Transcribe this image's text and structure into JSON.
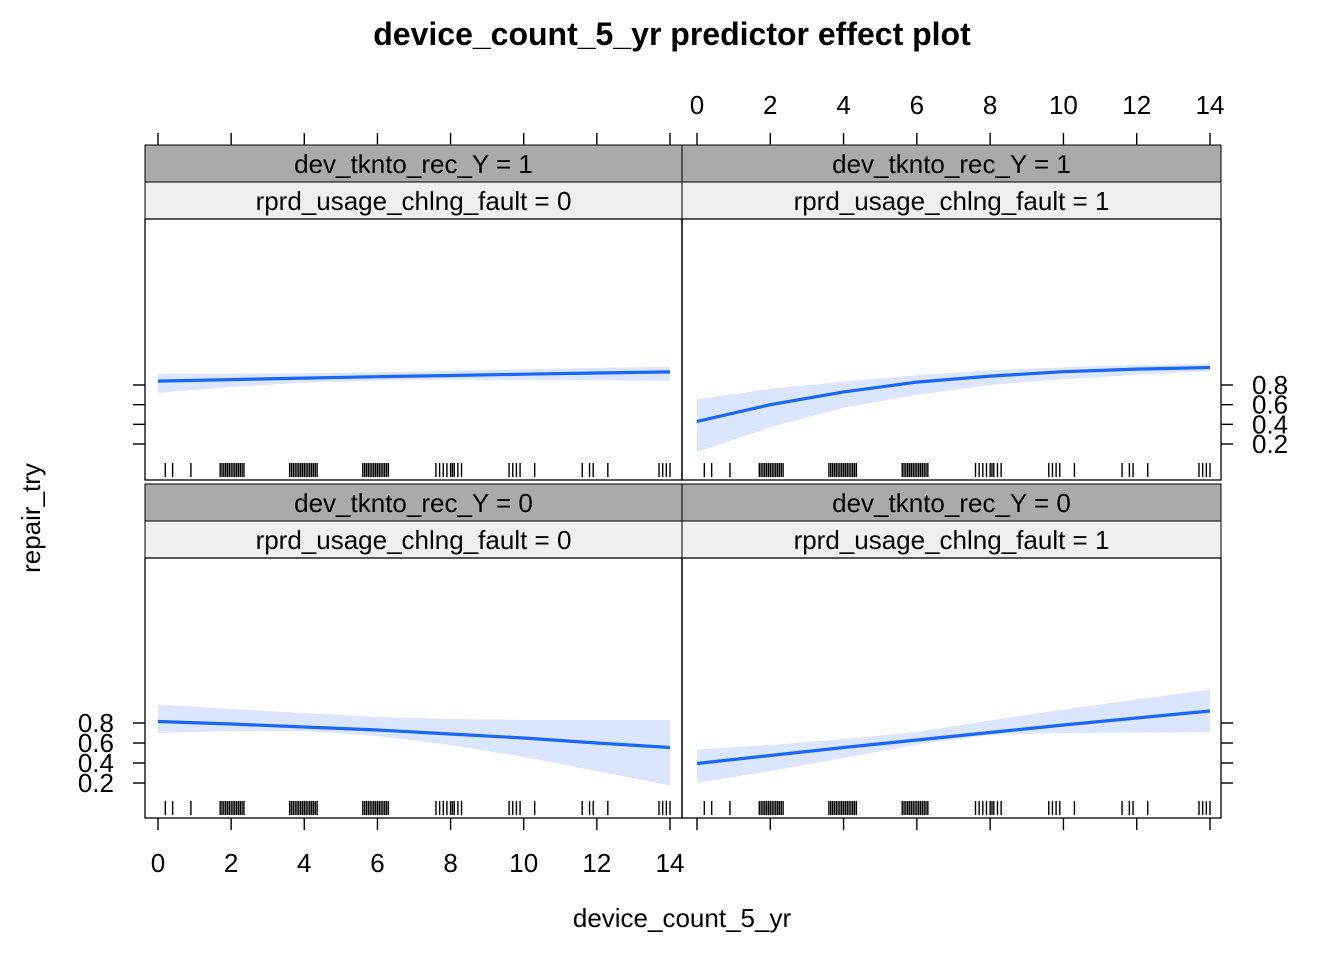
{
  "chart_data": {
    "type": "line",
    "title": "device_count_5_yr predictor effect plot",
    "xlabel": "device_count_5_yr",
    "ylabel": "repair_try",
    "xlim": [
      0,
      14
    ],
    "x_ticks": [
      0,
      2,
      4,
      6,
      8,
      10,
      12,
      14
    ],
    "y_ticks": [
      0.2,
      0.4,
      0.6,
      0.8
    ],
    "grid": false,
    "colors": {
      "line": "#1a66f5",
      "band": "#dbe6fc",
      "strip_dark": "#aaaaaa",
      "strip_light": "#efefef",
      "rug": "#000000"
    },
    "rug_x": [
      0.2,
      0.4,
      0.9,
      1.7,
      1.75,
      1.8,
      1.85,
      1.9,
      1.95,
      2.0,
      2.05,
      2.1,
      2.15,
      2.2,
      2.25,
      2.3,
      2.35,
      3.6,
      3.65,
      3.7,
      3.75,
      3.8,
      3.85,
      3.9,
      3.95,
      4.0,
      4.05,
      4.1,
      4.15,
      4.2,
      4.25,
      4.3,
      4.35,
      5.6,
      5.65,
      5.7,
      5.75,
      5.8,
      5.85,
      5.9,
      5.95,
      6.0,
      6.05,
      6.1,
      6.15,
      6.2,
      6.25,
      6.3,
      7.6,
      7.7,
      7.8,
      7.9,
      8.0,
      8.05,
      8.1,
      8.2,
      8.3,
      9.6,
      9.7,
      9.8,
      9.9,
      10.3,
      11.6,
      11.8,
      11.9,
      12.3,
      13.7,
      13.8,
      13.9,
      14.0
    ],
    "panels": [
      {
        "strip1": "dev_tknto_rec_Y = 1",
        "strip2": "rprd_usage_chlng_fault = 0",
        "x": [
          0,
          2,
          4,
          6,
          8,
          10,
          12,
          14
        ],
        "fit": [
          0.84,
          0.855,
          0.87,
          0.884,
          0.897,
          0.91,
          0.922,
          0.933
        ],
        "lower": [
          0.72,
          0.78,
          0.822,
          0.845,
          0.853,
          0.852,
          0.848,
          0.843
        ],
        "upper": [
          0.915,
          0.915,
          0.92,
          0.93,
          0.945,
          0.96,
          0.973,
          0.986
        ]
      },
      {
        "strip1": "dev_tknto_rec_Y = 1",
        "strip2": "rprd_usage_chlng_fault = 1",
        "x": [
          0,
          2,
          4,
          6,
          8,
          10,
          12,
          14
        ],
        "fit": [
          0.43,
          0.6,
          0.73,
          0.83,
          0.89,
          0.935,
          0.962,
          0.978
        ],
        "lower": [
          0.12,
          0.37,
          0.57,
          0.7,
          0.8,
          0.86,
          0.905,
          0.94
        ],
        "upper": [
          0.655,
          0.76,
          0.835,
          0.9,
          0.95,
          0.98,
          1.0,
          1.015
        ]
      },
      {
        "strip1": "dev_tknto_rec_Y = 0",
        "strip2": "rprd_usage_chlng_fault = 0",
        "x": [
          0,
          2,
          4,
          6,
          8,
          10,
          12,
          14
        ],
        "fit": [
          0.815,
          0.79,
          0.76,
          0.73,
          0.69,
          0.65,
          0.6,
          0.555
        ],
        "lower": [
          0.7,
          0.72,
          0.72,
          0.67,
          0.58,
          0.46,
          0.32,
          0.175
        ],
        "upper": [
          0.985,
          0.94,
          0.9,
          0.86,
          0.84,
          0.83,
          0.83,
          0.83
        ]
      },
      {
        "strip1": "dev_tknto_rec_Y = 0",
        "strip2": "rprd_usage_chlng_fault = 1",
        "x": [
          0,
          2,
          4,
          6,
          8,
          10,
          12,
          14
        ],
        "fit": [
          0.395,
          0.475,
          0.555,
          0.63,
          0.705,
          0.78,
          0.85,
          0.92
        ],
        "lower": [
          0.2,
          0.32,
          0.45,
          0.585,
          0.68,
          0.7,
          0.705,
          0.71
        ],
        "upper": [
          0.535,
          0.58,
          0.64,
          0.71,
          0.825,
          0.935,
          1.035,
          1.135
        ]
      }
    ]
  }
}
